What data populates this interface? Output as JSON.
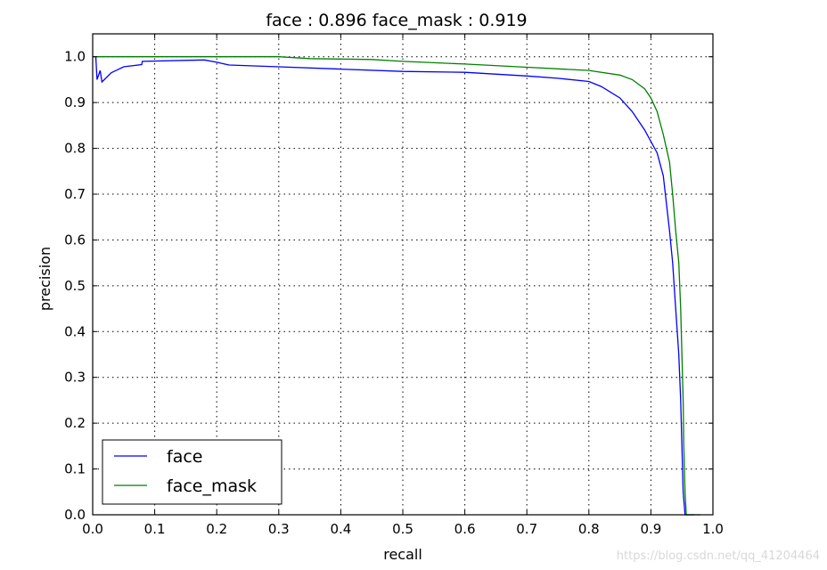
{
  "chart_data": {
    "type": "line",
    "title": "face : 0.896  face_mask : 0.919",
    "xlabel": "recall",
    "ylabel": "precision",
    "xlim": [
      0.0,
      1.0
    ],
    "ylim": [
      0.0,
      1.05
    ],
    "grid": true,
    "legend_placement": "lower-left",
    "xticks": [
      "0.0",
      "0.1",
      "0.2",
      "0.3",
      "0.4",
      "0.5",
      "0.6",
      "0.7",
      "0.8",
      "0.9",
      "1.0"
    ],
    "yticks": [
      "0.0",
      "0.1",
      "0.2",
      "0.3",
      "0.4",
      "0.5",
      "0.6",
      "0.7",
      "0.8",
      "0.9",
      "1.0"
    ],
    "series": [
      {
        "name": "face",
        "color": "#0000ff",
        "x": [
          0.005,
          0.007,
          0.012,
          0.015,
          0.03,
          0.05,
          0.079,
          0.08,
          0.18,
          0.2,
          0.22,
          0.3,
          0.4,
          0.5,
          0.6,
          0.7,
          0.75,
          0.8,
          0.82,
          0.85,
          0.87,
          0.89,
          0.91,
          0.92,
          0.925,
          0.93,
          0.935,
          0.94,
          0.945,
          0.948,
          0.95,
          0.952,
          0.955,
          0.97
        ],
        "y": [
          1.0,
          0.95,
          0.97,
          0.945,
          0.965,
          0.978,
          0.983,
          0.99,
          0.993,
          0.988,
          0.982,
          0.978,
          0.973,
          0.968,
          0.966,
          0.958,
          0.953,
          0.946,
          0.935,
          0.91,
          0.88,
          0.84,
          0.79,
          0.74,
          0.68,
          0.62,
          0.55,
          0.45,
          0.35,
          0.25,
          0.15,
          0.05,
          0.0,
          0.0
        ]
      },
      {
        "name": "face_mask",
        "color": "#008000",
        "x": [
          0.0,
          0.3,
          0.35,
          0.45,
          0.5,
          0.6,
          0.7,
          0.8,
          0.85,
          0.87,
          0.89,
          0.9,
          0.91,
          0.92,
          0.93,
          0.935,
          0.94,
          0.945,
          0.948,
          0.95,
          0.952,
          0.953,
          0.955,
          0.957,
          0.98
        ],
        "y": [
          1.0,
          1.0,
          0.996,
          0.994,
          0.99,
          0.984,
          0.977,
          0.97,
          0.96,
          0.95,
          0.93,
          0.91,
          0.88,
          0.83,
          0.77,
          0.7,
          0.62,
          0.55,
          0.45,
          0.35,
          0.25,
          0.15,
          0.05,
          0.0,
          0.0
        ]
      }
    ]
  },
  "watermark": "https://blog.csdn.net/qq_41204464"
}
